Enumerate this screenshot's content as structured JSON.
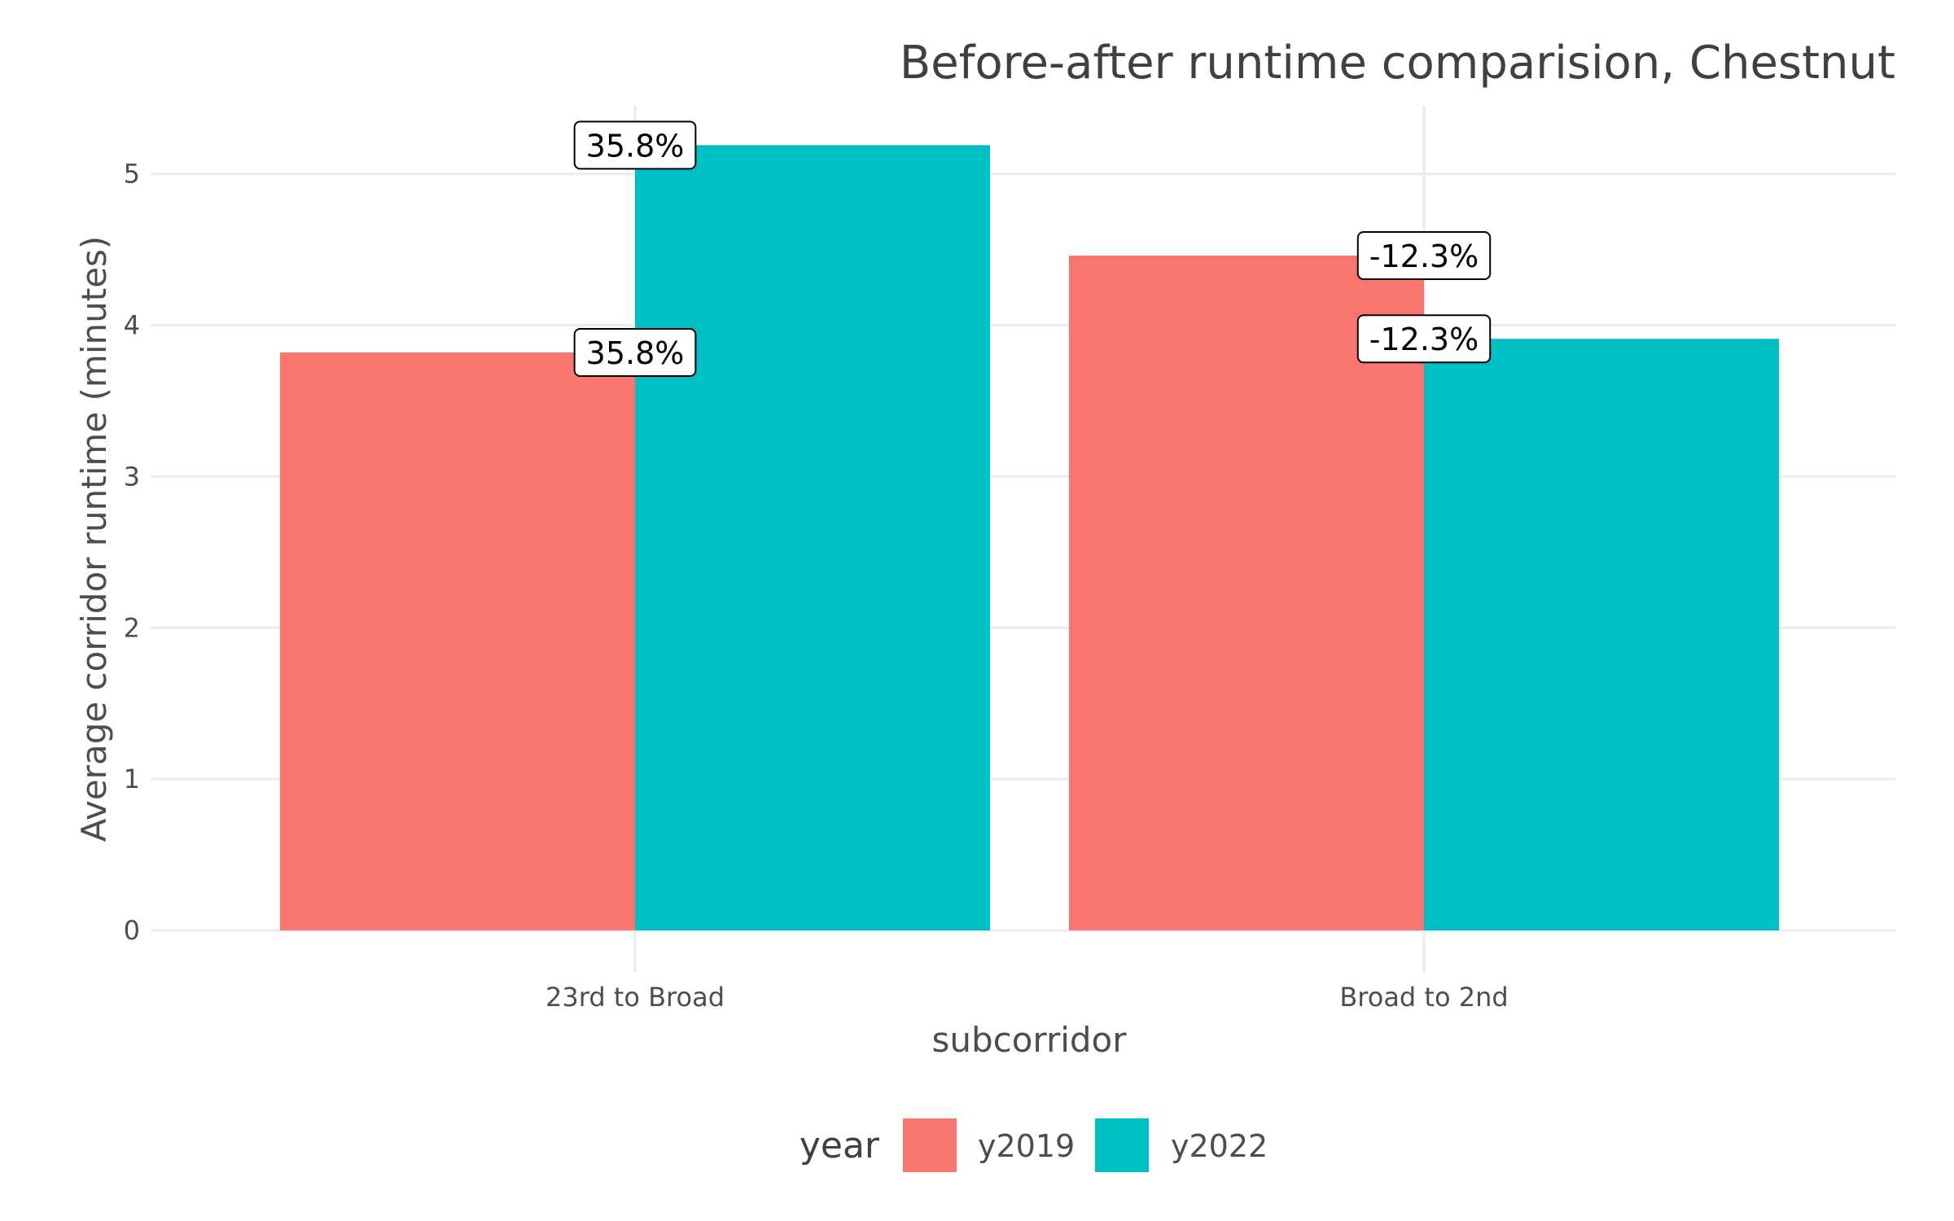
{
  "chart_data": {
    "type": "bar",
    "title": "Before-after runtime comparision, Chestnut",
    "xlabel": "subcorridor",
    "ylabel": "Average corridor runtime (minutes)",
    "categories": [
      "23rd to Broad",
      "Broad to 2nd"
    ],
    "series": [
      {
        "name": "y2019",
        "values": [
          3.82,
          4.46
        ],
        "labels": [
          "35.8%",
          "-12.3%"
        ]
      },
      {
        "name": "y2022",
        "values": [
          5.19,
          3.91
        ],
        "labels": [
          "35.8%",
          "-12.3%"
        ]
      }
    ],
    "ylim": [
      0,
      5.45
    ],
    "yticks": [
      0,
      1,
      2,
      3,
      4,
      5
    ],
    "grid": true,
    "legend": {
      "title": "year",
      "position": "bottom"
    },
    "colors": {
      "y2019": "#F8766D",
      "y2022": "#00BFC4",
      "grid": "#EBEBEB",
      "text": "#4D4D4D",
      "title": "#404040"
    }
  }
}
